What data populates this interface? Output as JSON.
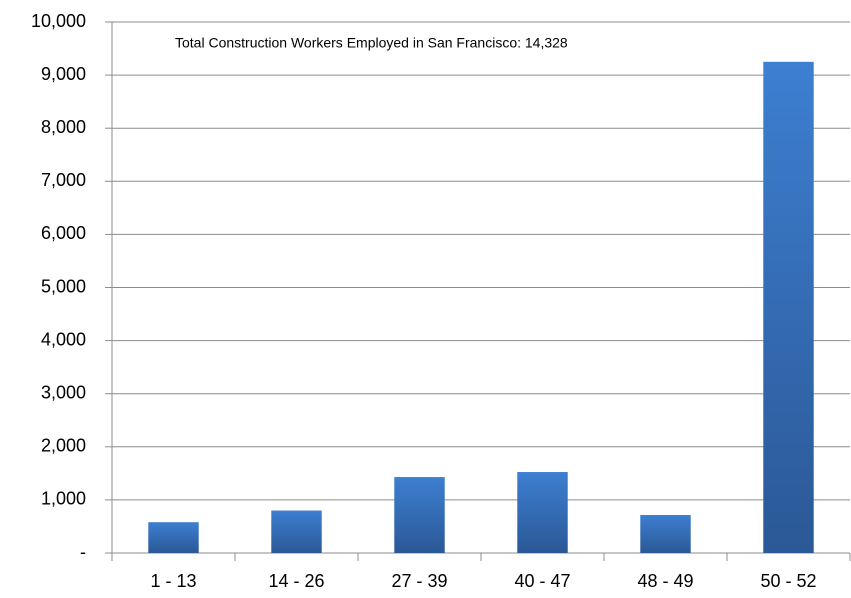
{
  "chart_data": {
    "type": "bar",
    "annotation": "Total Construction Workers Employed in San Francisco: 14,328",
    "categories": [
      "1 - 13",
      "14 - 26",
      "27 - 39",
      "40 - 47",
      "48 - 49",
      "50 - 52"
    ],
    "values": [
      580,
      800,
      1430,
      1525,
      715,
      9250
    ],
    "color": "#3d7fd1",
    "ylim": [
      0,
      10000
    ],
    "yticks": [
      {
        "value": 0,
        "label": "-"
      },
      {
        "value": 1000,
        "label": "1,000"
      },
      {
        "value": 2000,
        "label": "2,000"
      },
      {
        "value": 3000,
        "label": "3,000"
      },
      {
        "value": 4000,
        "label": "4,000"
      },
      {
        "value": 5000,
        "label": "5,000"
      },
      {
        "value": 6000,
        "label": "6,000"
      },
      {
        "value": 7000,
        "label": "7,000"
      },
      {
        "value": 8000,
        "label": "8,000"
      },
      {
        "value": 9000,
        "label": "9,000"
      },
      {
        "value": 10000,
        "label": "10,000"
      }
    ],
    "grid": true
  }
}
